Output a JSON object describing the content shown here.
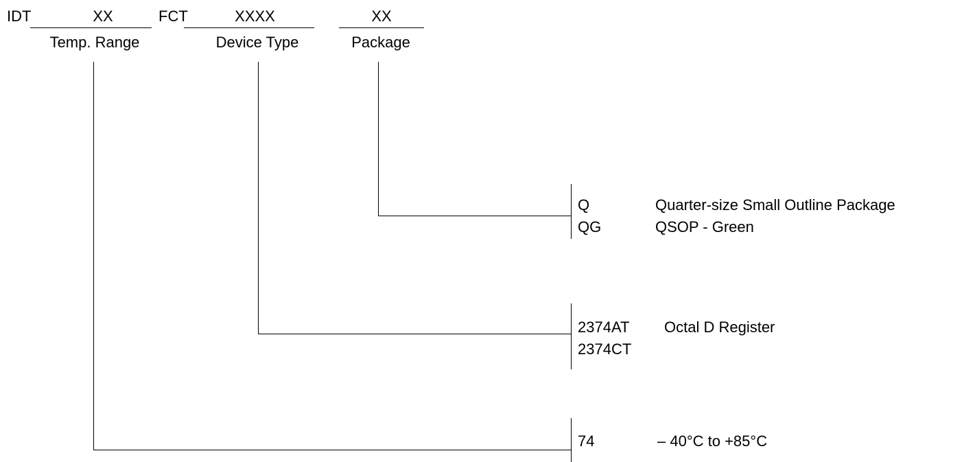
{
  "header": {
    "prefix": "IDT",
    "temp_field": "XX",
    "family": "FCT",
    "device_field": "XXXX",
    "package_field": "XX",
    "temp_label": "Temp. Range",
    "device_label": "Device Type",
    "package_label": "Package"
  },
  "package_options": [
    {
      "code": "Q",
      "description": "Quarter-size Small Outline Package"
    },
    {
      "code": "QG",
      "description": "QSOP - Green"
    }
  ],
  "device_options": [
    {
      "code": "2374AT",
      "description": "Octal D Register"
    },
    {
      "code": "2374CT",
      "description": ""
    }
  ],
  "temp_options": [
    {
      "code": "74",
      "description": "– 40°C to +85°C"
    }
  ]
}
